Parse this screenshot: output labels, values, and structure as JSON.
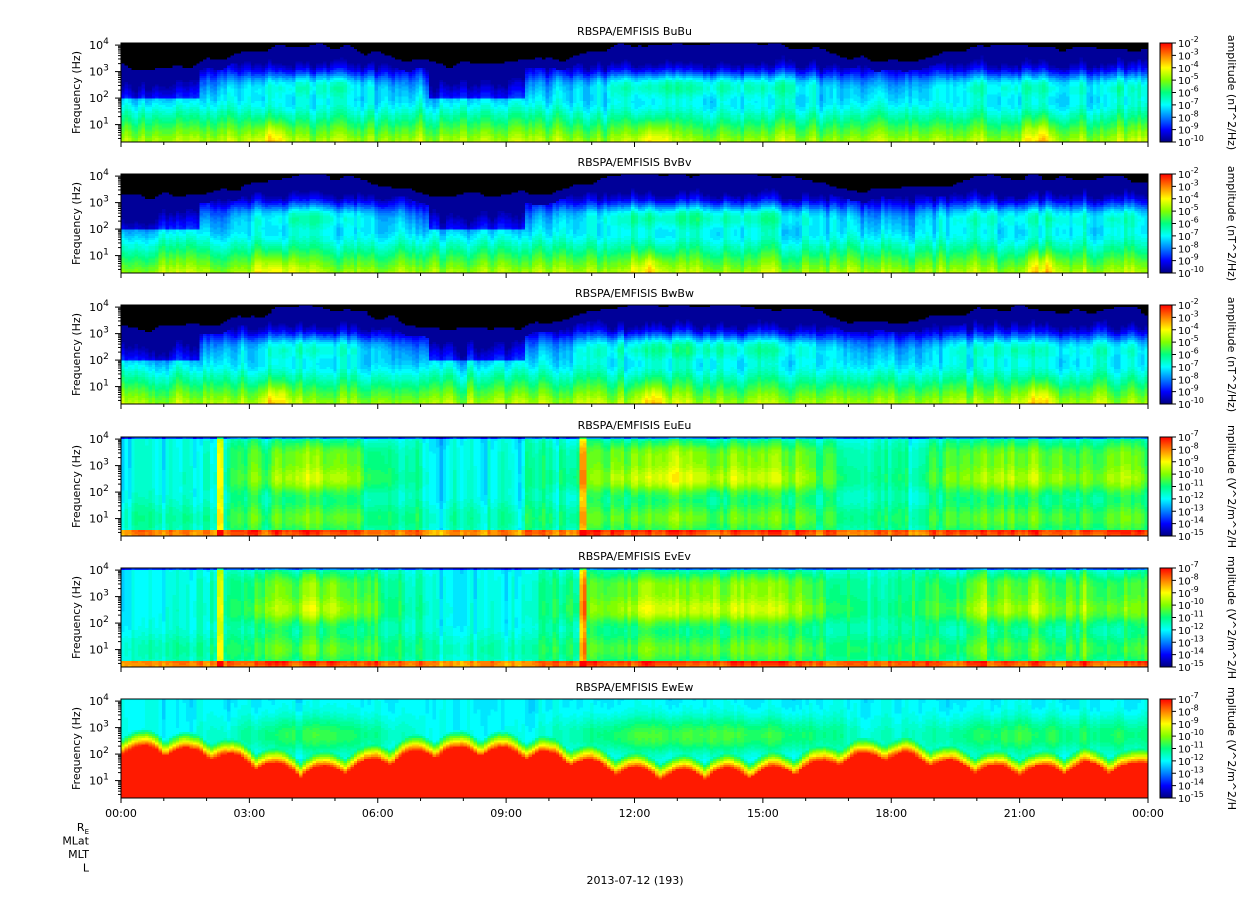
{
  "chart_data": {
    "type": "heatmap",
    "x_tick_labels": [
      "00:00",
      "03:00",
      "06:00",
      "09:00",
      "12:00",
      "15:00",
      "18:00",
      "21:00",
      "00:00"
    ],
    "x_range_hours": [
      0,
      24
    ],
    "x_minor_step_hours": 1,
    "date_label": "2013-07-12 (193)",
    "ephemeris_labels": [
      "R_E",
      "MLat",
      "MLT",
      "L"
    ],
    "panels": [
      {
        "title": "RBSPA/EMFISIS  BuBu",
        "ylabel": "Frequency (Hz)",
        "y_ticks": [
          {
            "base": "10",
            "exp": "1"
          },
          {
            "base": "10",
            "exp": "2"
          },
          {
            "base": "10",
            "exp": "3"
          },
          {
            "base": "10",
            "exp": "4"
          }
        ],
        "y_scale": "log",
        "y_range_hz": [
          2.2,
          12000
        ],
        "colorbar_label": "amplitude (nT^2/Hz)",
        "colorbar_ticks": [
          "-2",
          "-3",
          "-4",
          "-5",
          "-6",
          "-7",
          "-8",
          "-9",
          "-10"
        ],
        "colorbar_range_log10": [
          -10,
          -2
        ],
        "kind": "mag"
      },
      {
        "title": "RBSPA/EMFISIS  BvBv",
        "ylabel": "Frequency (Hz)",
        "y_ticks": [
          {
            "base": "10",
            "exp": "1"
          },
          {
            "base": "10",
            "exp": "2"
          },
          {
            "base": "10",
            "exp": "3"
          },
          {
            "base": "10",
            "exp": "4"
          }
        ],
        "y_scale": "log",
        "y_range_hz": [
          2.2,
          12000
        ],
        "colorbar_label": "amplitude (nT^2/Hz)",
        "colorbar_ticks": [
          "-2",
          "-3",
          "-4",
          "-5",
          "-6",
          "-7",
          "-8",
          "-9",
          "-10"
        ],
        "colorbar_range_log10": [
          -10,
          -2
        ],
        "kind": "mag"
      },
      {
        "title": "RBSPA/EMFISIS  BwBw",
        "ylabel": "Frequency (Hz)",
        "y_ticks": [
          {
            "base": "10",
            "exp": "1"
          },
          {
            "base": "10",
            "exp": "2"
          },
          {
            "base": "10",
            "exp": "3"
          },
          {
            "base": "10",
            "exp": "4"
          }
        ],
        "y_scale": "log",
        "y_range_hz": [
          2.2,
          12000
        ],
        "colorbar_label": "amplitude (nT^2/Hz)",
        "colorbar_ticks": [
          "-2",
          "-3",
          "-4",
          "-5",
          "-6",
          "-7",
          "-8",
          "-9",
          "-10"
        ],
        "colorbar_range_log10": [
          -10,
          -2
        ],
        "kind": "mag"
      },
      {
        "title": "RBSPA/EMFISIS  EuEu",
        "ylabel": "Frequency (Hz)",
        "y_ticks": [
          {
            "base": "10",
            "exp": "1"
          },
          {
            "base": "10",
            "exp": "2"
          },
          {
            "base": "10",
            "exp": "3"
          },
          {
            "base": "10",
            "exp": "4"
          }
        ],
        "y_scale": "log",
        "y_range_hz": [
          2.2,
          12000
        ],
        "colorbar_label": "mplitude (V^2/m^2/H",
        "colorbar_ticks": [
          "-7",
          "-8",
          "-9",
          "-10",
          "-11",
          "-12",
          "-13",
          "-14",
          "-15"
        ],
        "colorbar_range_log10": [
          -15,
          -7
        ],
        "kind": "elec"
      },
      {
        "title": "RBSPA/EMFISIS  EvEv",
        "ylabel": "Frequency (Hz)",
        "y_ticks": [
          {
            "base": "10",
            "exp": "1"
          },
          {
            "base": "10",
            "exp": "2"
          },
          {
            "base": "10",
            "exp": "3"
          },
          {
            "base": "10",
            "exp": "4"
          }
        ],
        "y_scale": "log",
        "y_range_hz": [
          2.2,
          12000
        ],
        "colorbar_label": "mplitude (V^2/m^2/H",
        "colorbar_ticks": [
          "-7",
          "-8",
          "-9",
          "-10",
          "-11",
          "-12",
          "-13",
          "-14",
          "-15"
        ],
        "colorbar_range_log10": [
          -15,
          -7
        ],
        "kind": "elec"
      },
      {
        "title": "RBSPA/EMFISIS  EwEw",
        "ylabel": "Frequency (Hz)",
        "y_ticks": [
          {
            "base": "10",
            "exp": "1"
          },
          {
            "base": "10",
            "exp": "2"
          },
          {
            "base": "10",
            "exp": "3"
          },
          {
            "base": "10",
            "exp": "4"
          }
        ],
        "y_scale": "log",
        "y_range_hz": [
          2.2,
          12000
        ],
        "colorbar_label": "mplitude (V^2/m^2/H",
        "colorbar_ticks": [
          "-7",
          "-8",
          "-9",
          "-10",
          "-11",
          "-12",
          "-13",
          "-14",
          "-15"
        ],
        "colorbar_range_log10": [
          -15,
          -7
        ],
        "kind": "elecw"
      }
    ],
    "colorscale": [
      "#000080",
      "#0000ff",
      "#0080ff",
      "#00ffff",
      "#00ff80",
      "#80ff00",
      "#ffff00",
      "#ff8000",
      "#ff0000"
    ],
    "no_data_color": "#000000",
    "grid": false,
    "legend": "colorbar-right"
  }
}
